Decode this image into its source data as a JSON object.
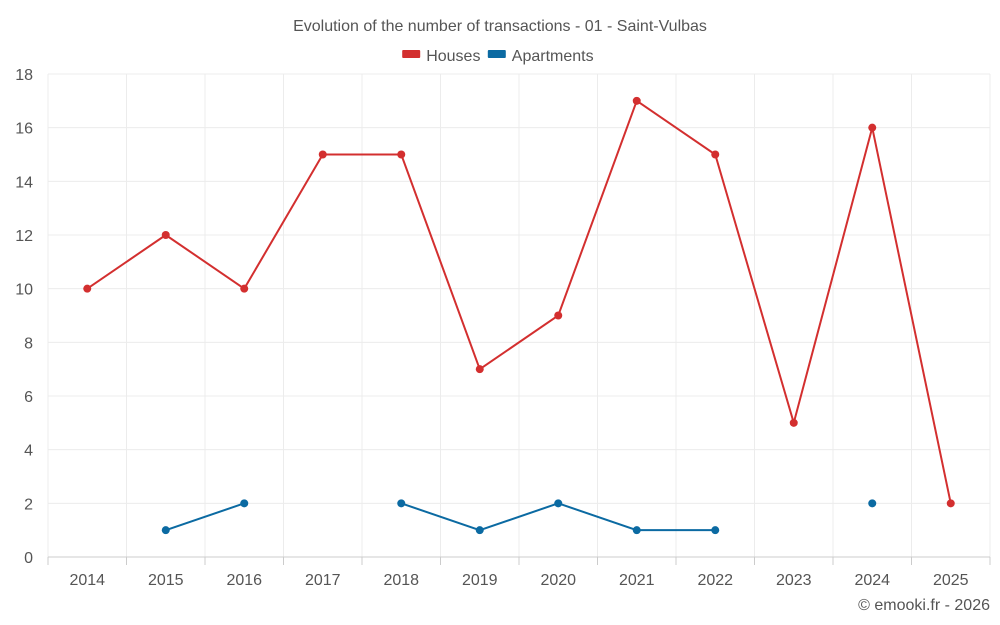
{
  "chart_data": {
    "type": "line",
    "title": "Evolution of the number of transactions - 01 - Saint-Vulbas",
    "categories": [
      "2014",
      "2015",
      "2016",
      "2017",
      "2018",
      "2019",
      "2020",
      "2021",
      "2022",
      "2023",
      "2024",
      "2025"
    ],
    "ylim": [
      0,
      18
    ],
    "yticks": [
      0,
      2,
      4,
      6,
      8,
      10,
      12,
      14,
      16,
      18
    ],
    "grid": true,
    "legend_position": "top-center",
    "series": [
      {
        "name": "Houses",
        "color": "#d32f2f",
        "values": [
          10,
          12,
          10,
          15,
          15,
          7,
          9,
          17,
          15,
          5,
          16,
          2
        ]
      },
      {
        "name": "Apartments",
        "color": "#0b6aa2",
        "values": [
          null,
          1,
          2,
          null,
          2,
          1,
          2,
          1,
          1,
          null,
          2,
          null
        ]
      }
    ]
  },
  "credit": "© emooki.fr - 2026"
}
